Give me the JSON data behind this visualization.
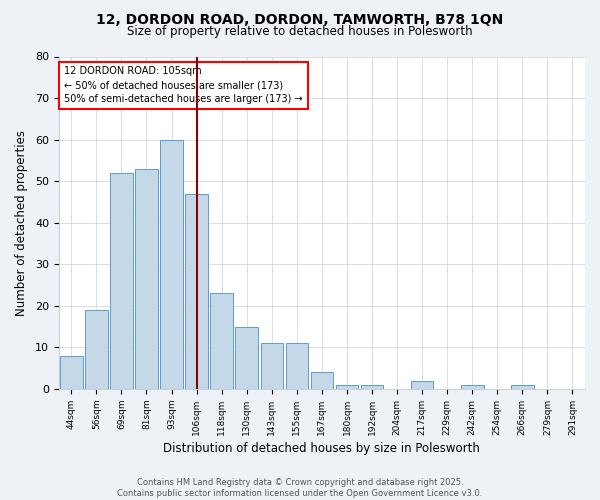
{
  "title_line1": "12, DORDON ROAD, DORDON, TAMWORTH, B78 1QN",
  "title_line2": "Size of property relative to detached houses in Polesworth",
  "xlabel": "Distribution of detached houses by size in Polesworth",
  "ylabel": "Number of detached properties",
  "bar_labels": [
    "44sqm",
    "56sqm",
    "69sqm",
    "81sqm",
    "93sqm",
    "106sqm",
    "118sqm",
    "130sqm",
    "143sqm",
    "155sqm",
    "167sqm",
    "180sqm",
    "192sqm",
    "204sqm",
    "217sqm",
    "229sqm",
    "242sqm",
    "254sqm",
    "266sqm",
    "279sqm",
    "291sqm"
  ],
  "bar_values": [
    8,
    19,
    52,
    53,
    60,
    47,
    23,
    15,
    11,
    11,
    4,
    1,
    1,
    0,
    2,
    0,
    1,
    0,
    1,
    0,
    0
  ],
  "bar_color": "#c5d8e8",
  "bar_edge_color": "#5b9bd5",
  "vline_index": 5,
  "vline_color": "#8b0000",
  "annotation_text": "12 DORDON ROAD: 105sqm\n← 50% of detached houses are smaller (173)\n50% of semi-detached houses are larger (173) →",
  "annotation_box_color": "white",
  "annotation_box_edge_color": "red",
  "ylim": [
    0,
    80
  ],
  "yticks": [
    0,
    10,
    20,
    30,
    40,
    50,
    60,
    70,
    80
  ],
  "footer_line1": "Contains HM Land Registry data © Crown copyright and database right 2025.",
  "footer_line2": "Contains public sector information licensed under the Open Government Licence v3.0.",
  "bg_color": "#eef2f7",
  "plot_bg_color": "#ffffff",
  "grid_color": "#c8d0da"
}
